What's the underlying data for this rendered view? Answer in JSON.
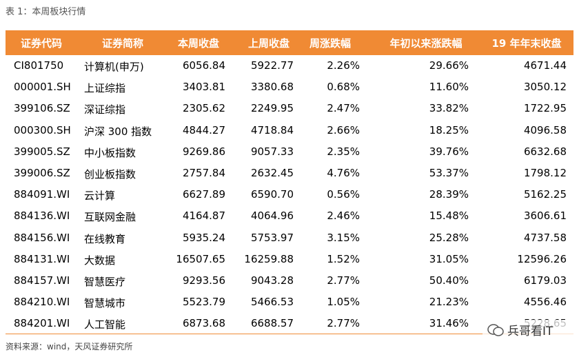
{
  "caption": "表 1：本周板块行情",
  "table": {
    "header": [
      "证券代码",
      "证券简称",
      "本周收盘",
      "上周收盘",
      "周涨跌幅",
      "年初以来涨跌幅",
      "19 年年末收盘"
    ],
    "rows": [
      [
        "CI801750",
        "计算机(申万)",
        "6056.84",
        "5922.77",
        "2.26%",
        "29.66%",
        "4671.44"
      ],
      [
        "000001.SH",
        "上证综指",
        "3403.81",
        "3380.68",
        "0.68%",
        "11.60%",
        "3050.12"
      ],
      [
        "399106.SZ",
        "深证综指",
        "2305.62",
        "2249.95",
        "2.47%",
        "33.82%",
        "1722.95"
      ],
      [
        "000300.SH",
        "沪深 300 指数",
        "4844.27",
        "4718.84",
        "2.66%",
        "18.25%",
        "4096.58"
      ],
      [
        "399005.SZ",
        "中小板指数",
        "9269.86",
        "9057.33",
        "2.35%",
        "39.76%",
        "6632.68"
      ],
      [
        "399006.SZ",
        "创业板指数",
        "2757.84",
        "2632.45",
        "4.76%",
        "53.37%",
        "1798.12"
      ],
      [
        "884091.WI",
        "云计算",
        "6627.89",
        "6590.70",
        "0.56%",
        "28.39%",
        "5162.25"
      ],
      [
        "884136.WI",
        "互联网金融",
        "4164.87",
        "4064.96",
        "2.46%",
        "15.48%",
        "3606.61"
      ],
      [
        "884156.WI",
        "在线教育",
        "5935.24",
        "5753.97",
        "3.15%",
        "25.28%",
        "4737.58"
      ],
      [
        "884131.WI",
        "大数据",
        "16507.65",
        "16259.88",
        "1.52%",
        "31.05%",
        "12596.26"
      ],
      [
        "884157.WI",
        "智慧医疗",
        "9293.56",
        "9043.28",
        "2.77%",
        "50.40%",
        "6179.03"
      ],
      [
        "884210.WI",
        "智慧城市",
        "5523.79",
        "5466.53",
        "1.05%",
        "21.23%",
        "4556.46"
      ],
      [
        "884201.WI",
        "人工智能",
        "6873.68",
        "6688.57",
        "2.77%",
        "31.46%",
        "5228.65"
      ]
    ]
  },
  "source": "资料来源：wind，天风证券研究所",
  "watermark": "兵哥看IT"
}
